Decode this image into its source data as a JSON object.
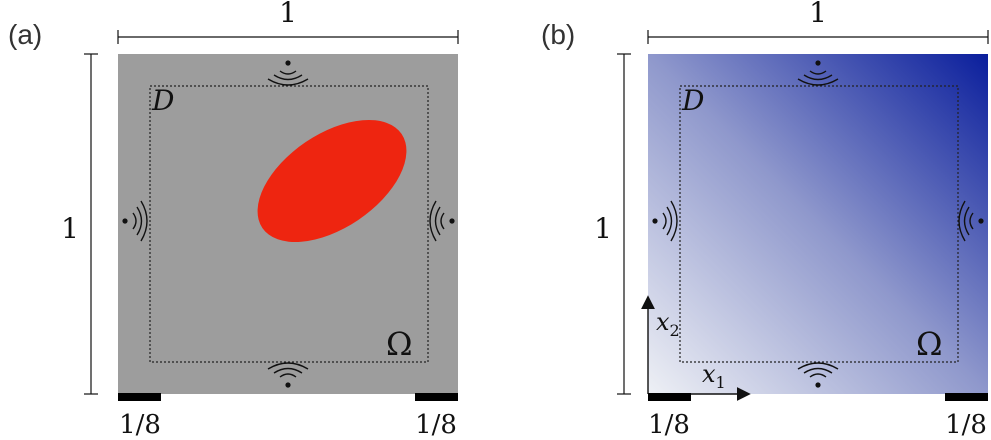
{
  "colors": {
    "panel_a_background": "#9d9d9d",
    "inclusion_fill": "#ee2510",
    "gradient_light": "#eef0f5",
    "gradient_dark": "#0a1e9c",
    "electrode_fill": "#000000",
    "outline_color": "#111111"
  },
  "panels": [
    {
      "label": "(a)",
      "width_label": "1",
      "height_label": "1",
      "inner_region_label": "D",
      "domain_label": "Ω",
      "electrode_left_label": "1/8",
      "electrode_right_label": "1/8",
      "background": "solid gray",
      "sensor_icons": [
        "antenna-icon-top",
        "antenna-icon-left",
        "antenna-icon-right",
        "antenna-icon-bottom"
      ],
      "inclusion": "red ellipse"
    },
    {
      "label": "(b)",
      "width_label": "1",
      "height_label": "1",
      "inner_region_label": "D",
      "domain_label": "Ω",
      "electrode_left_label": "1/8",
      "electrode_right_label": "1/8",
      "background": "gradient white to blue",
      "sensor_icons": [
        "antenna-icon-top",
        "antenna-icon-left",
        "antenna-icon-right",
        "antenna-icon-bottom"
      ],
      "axes": {
        "x_axis_label": "x",
        "x_axis_subscript": "1",
        "y_axis_label": "x",
        "y_axis_subscript": "2"
      }
    }
  ]
}
